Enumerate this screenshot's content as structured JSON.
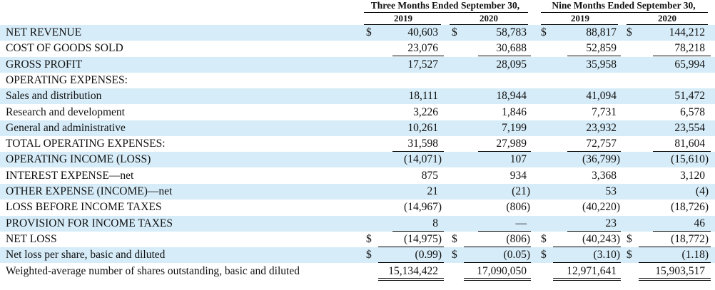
{
  "headers": {
    "three_months": "Three Months Ended September 30,",
    "nine_months": "Nine Months Ended September 30,",
    "years": [
      "2019",
      "2020",
      "2019",
      "2020"
    ]
  },
  "rows": [
    {
      "label": "NET REVENUE",
      "dollar": [
        true,
        true,
        true,
        true
      ],
      "values": [
        "40,603",
        "58,783",
        "88,817",
        "144,212"
      ]
    },
    {
      "label": "COST OF GOODS SOLD",
      "dollar": [
        false,
        false,
        false,
        false
      ],
      "values": [
        "23,076",
        "30,688",
        "52,859",
        "78,218"
      ]
    },
    {
      "label": "GROSS PROFIT",
      "dollar": [
        false,
        false,
        false,
        false
      ],
      "values": [
        "17,527",
        "28,095",
        "35,958",
        "65,994"
      ]
    },
    {
      "label": "OPERATING EXPENSES:",
      "dollar": [
        false,
        false,
        false,
        false
      ],
      "values": [
        "",
        "",
        "",
        ""
      ]
    },
    {
      "label": "Sales and distribution",
      "dollar": [
        false,
        false,
        false,
        false
      ],
      "values": [
        "18,111",
        "18,944",
        "41,094",
        "51,472"
      ]
    },
    {
      "label": "Research and development",
      "dollar": [
        false,
        false,
        false,
        false
      ],
      "values": [
        "3,226",
        "1,846",
        "7,731",
        "6,578"
      ]
    },
    {
      "label": "General and administrative",
      "dollar": [
        false,
        false,
        false,
        false
      ],
      "values": [
        "10,261",
        "7,199",
        "23,932",
        "23,554"
      ]
    },
    {
      "label": "TOTAL OPERATING EXPENSES:",
      "dollar": [
        false,
        false,
        false,
        false
      ],
      "values": [
        "31,598",
        "27,989",
        "72,757",
        "81,604"
      ]
    },
    {
      "label": "OPERATING INCOME (LOSS)",
      "dollar": [
        false,
        false,
        false,
        false
      ],
      "values": [
        "(14,071)",
        "107",
        "(36,799)",
        "(15,610)"
      ]
    },
    {
      "label": "INTEREST EXPENSE—net",
      "dollar": [
        false,
        false,
        false,
        false
      ],
      "values": [
        "875",
        "934",
        "3,368",
        "3,120"
      ]
    },
    {
      "label": "OTHER EXPENSE (INCOME)—net",
      "dollar": [
        false,
        false,
        false,
        false
      ],
      "values": [
        "21",
        "(21)",
        "53",
        "(4)"
      ]
    },
    {
      "label": "LOSS BEFORE INCOME TAXES",
      "dollar": [
        false,
        false,
        false,
        false
      ],
      "values": [
        "(14,967)",
        "(806)",
        "(40,220)",
        "(18,726)"
      ]
    },
    {
      "label": "PROVISION FOR INCOME TAXES",
      "dollar": [
        false,
        false,
        false,
        false
      ],
      "values": [
        "8",
        "—",
        "23",
        "46"
      ]
    },
    {
      "label": "NET LOSS",
      "dollar": [
        true,
        true,
        true,
        true
      ],
      "values": [
        "(14,975)",
        "(806)",
        "(40,243)",
        "(18,772)"
      ]
    },
    {
      "label": "Net loss per share, basic and diluted",
      "dollar": [
        true,
        true,
        true,
        true
      ],
      "values": [
        "(0.99)",
        "(0.05)",
        "(3.10)",
        "(1.18)"
      ]
    },
    {
      "label": "Weighted-average number of shares outstanding, basic and diluted",
      "dollar": [
        false,
        false,
        false,
        false
      ],
      "values": [
        "15,134,422",
        "17,090,050",
        "12,971,641",
        "15,903,517"
      ]
    }
  ],
  "dollar_sign": "$",
  "colors": {
    "row_shade": "#d6ecf8"
  }
}
